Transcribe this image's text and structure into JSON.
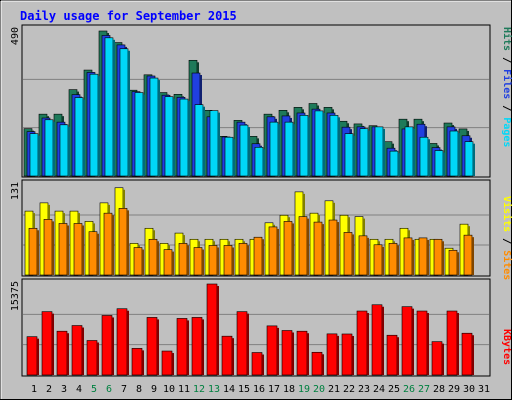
{
  "title": "Daily usage for September 2015",
  "colors": {
    "background": "#c0c0c0",
    "plot_bg": "#c0c0c0",
    "title": "#0000ff",
    "hits": "#1e7a5a",
    "files": "#2040e0",
    "pages": "#00d8f8",
    "visits": "#ffff00",
    "sites": "#ff8c00",
    "kbytes": "#ff0000",
    "weekend_label": "#008040",
    "weekday_label": "#000000"
  },
  "chart_data": [
    {
      "type": "bar",
      "panel": "hits-files-pages",
      "y_max_label": "490",
      "ylim": [
        0,
        490
      ],
      "legend": [
        "Pages",
        "Files",
        "Hits"
      ],
      "categories": [
        "1",
        "2",
        "3",
        "4",
        "5",
        "6",
        "7",
        "8",
        "9",
        "10",
        "11",
        "12",
        "13",
        "14",
        "15",
        "16",
        "17",
        "18",
        "19",
        "20",
        "21",
        "22",
        "23",
        "24",
        "25",
        "26",
        "27",
        "28",
        "29",
        "30",
        "31"
      ],
      "weekend_days": [
        "5",
        "6",
        "12",
        "13",
        "19",
        "20",
        "26",
        "27"
      ],
      "series": [
        {
          "name": "Hits",
          "values": [
            160,
            209,
            209,
            292,
            358,
            490,
            451,
            290,
            342,
            282,
            276,
            391,
            222,
            134,
            188,
            134,
            209,
            222,
            232,
            245,
            232,
            185,
            176,
            170,
            116,
            192,
            192,
            110,
            179,
            159,
            0
          ]
        },
        {
          "name": "Files",
          "values": [
            150,
            196,
            182,
            275,
            350,
            475,
            443,
            285,
            338,
            273,
            266,
            348,
            200,
            132,
            182,
            109,
            200,
            203,
            213,
            226,
            213,
            165,
            166,
            166,
            94,
            159,
            175,
            96,
            166,
            136,
            0
          ]
        },
        {
          "name": "Pages",
          "values": [
            143,
            190,
            173,
            265,
            344,
            467,
            430,
            282,
            331,
            268,
            260,
            241,
            221,
            131,
            172,
            97,
            182,
            182,
            205,
            220,
            205,
            143,
            160,
            166,
            84,
            166,
            131,
            86,
            152,
            116,
            0
          ]
        }
      ]
    },
    {
      "type": "bar",
      "panel": "visits-sites",
      "y_max_label": "131",
      "ylim": [
        0,
        131
      ],
      "legend": [
        "Sites",
        "Visits"
      ],
      "categories": [
        "1",
        "2",
        "3",
        "4",
        "5",
        "6",
        "7",
        "8",
        "9",
        "10",
        "11",
        "12",
        "13",
        "14",
        "15",
        "16",
        "17",
        "18",
        "19",
        "20",
        "21",
        "22",
        "23",
        "24",
        "25",
        "26",
        "27",
        "28",
        "29",
        "30",
        "31"
      ],
      "series": [
        {
          "name": "Visits",
          "values": [
            93,
            105,
            93,
            93,
            78,
            105,
            127,
            46,
            68,
            46,
            61,
            52,
            52,
            52,
            52,
            52,
            76,
            87,
            121,
            90,
            108,
            87,
            85,
            52,
            52,
            68,
            52,
            52,
            39,
            74,
            0
          ]
        },
        {
          "name": "Sites",
          "values": [
            68,
            81,
            75,
            75,
            63,
            90,
            97,
            40,
            52,
            37,
            46,
            40,
            43,
            43,
            46,
            55,
            70,
            78,
            85,
            77,
            80,
            62,
            57,
            44,
            46,
            54,
            54,
            52,
            36,
            58,
            0
          ]
        }
      ]
    },
    {
      "type": "bar",
      "panel": "kbytes",
      "y_max_label": "15375",
      "ylim": [
        0,
        15375
      ],
      "legend": [
        "KBytes"
      ],
      "categories": [
        "1",
        "2",
        "3",
        "4",
        "5",
        "6",
        "7",
        "8",
        "9",
        "10",
        "11",
        "12",
        "13",
        "14",
        "15",
        "16",
        "17",
        "18",
        "19",
        "20",
        "21",
        "22",
        "23",
        "24",
        "25",
        "26",
        "27",
        "28",
        "29",
        "30",
        "31"
      ],
      "series": [
        {
          "name": "KBytes",
          "values": [
            6480,
            10710,
            7400,
            8360,
            5830,
            10060,
            11200,
            4500,
            9730,
            4050,
            9560,
            9730,
            15375,
            6560,
            10710,
            3800,
            8300,
            7520,
            7400,
            3840,
            6950,
            6930,
            10810,
            11870,
            6720,
            11550,
            10810,
            5640,
            10810,
            7060,
            0
          ]
        }
      ]
    }
  ]
}
